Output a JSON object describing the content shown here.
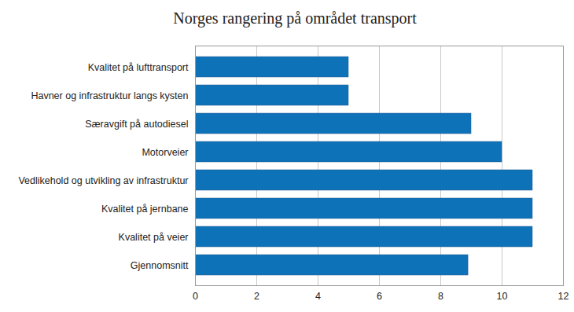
{
  "chart_data": {
    "type": "bar",
    "title": "Norges rangering på området transport",
    "orientation": "horizontal",
    "categories": [
      "Kvalitet på lufttransport",
      "Havner og infrastruktur langs kysten",
      "Særavgift på autodiesel",
      "Motorveier",
      "Vedlikehold og utvikling av infrastruktur",
      "Kvalitet på jernbane",
      "Kvalitet på veier",
      "Gjennomsnitt"
    ],
    "values": [
      5,
      5,
      9,
      10,
      11,
      11,
      11,
      8.9
    ],
    "color": "#0e72b8",
    "xlim": [
      0,
      12
    ],
    "xticks": [
      0,
      2,
      4,
      6,
      8,
      10,
      12
    ],
    "grid": true
  }
}
